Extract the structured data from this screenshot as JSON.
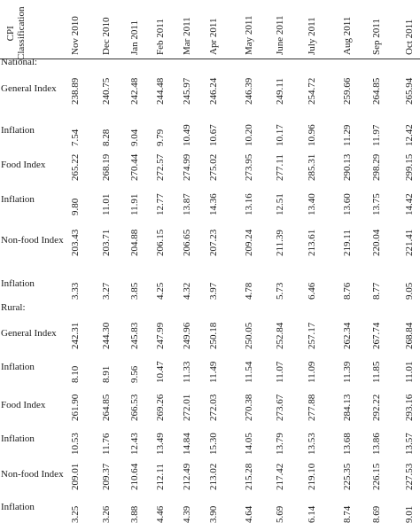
{
  "table": {
    "corner_label_line1": "CPI",
    "corner_label_line2": "Classification",
    "columns": [
      "Nov 2010",
      "Dec 2010",
      "Jan 2011",
      "Feb 2011",
      "Mar 2011",
      "Apr 2011",
      "May 2011",
      "June 2011",
      "July 2011",
      "Aug 2011",
      "Sep 2011",
      "Oct 2011"
    ],
    "rows": [
      {
        "label": "National:",
        "section": true,
        "values": []
      },
      {
        "label": "General Index",
        "values": [
          "238.89",
          "240.75",
          "242.48",
          "244.48",
          "245.97",
          "246.24",
          "246.39",
          "249.11",
          "254.72",
          "259.66",
          "264.85",
          "265.94"
        ]
      },
      {
        "label": "Inflation",
        "values": [
          "7.54",
          "8.28",
          "9.04",
          "9.79",
          "10.49",
          "10.67",
          "10.20",
          "10.17",
          "10.96",
          "11.29",
          "11.97",
          "12.42"
        ]
      },
      {
        "label": "Food Index",
        "values": [
          "265.22",
          "268.19",
          "270.44",
          "272.57",
          "274.99",
          "275.02",
          "273.95",
          "277.11",
          "285.31",
          "290.13",
          "298.29",
          "299.15"
        ]
      },
      {
        "label": "Inflation",
        "values": [
          "9.80",
          "11.01",
          "11.91",
          "12.77",
          "13.87",
          "14.36",
          "13.16",
          "12.51",
          "13.40",
          "13.60",
          "13.75",
          "14.42"
        ]
      },
      {
        "label": "Non-food Index",
        "values": [
          "203.43",
          "203.71",
          "204.88",
          "206.15",
          "206.65",
          "207.23",
          "209.24",
          "211.39",
          "213.61",
          "219.11",
          "220.04",
          "221.41"
        ]
      },
      {
        "label": "Inflation",
        "values": [
          "3.33",
          "3.27",
          "3.85",
          "4.25",
          "4.32",
          "3.97",
          "4.78",
          "5.73",
          "6.46",
          "8.76",
          "8.77",
          "9.05"
        ]
      },
      {
        "label": "Rural:",
        "section": true,
        "values": []
      },
      {
        "label": "General Index",
        "values": [
          "242.31",
          "244.30",
          "245.83",
          "247.99",
          "249.96",
          "250.18",
          "250.05",
          "252.84",
          "257.17",
          "262.34",
          "267.74",
          "268.84"
        ]
      },
      {
        "label": "Inflation",
        "values": [
          "8.10",
          "8.91",
          "9.56",
          "10.47",
          "11.33",
          "11.49",
          "11.54",
          "11.07",
          "11.09",
          "11.39",
          "11.85",
          "11.01"
        ]
      },
      {
        "label": "Food Index",
        "values": [
          "261.90",
          "264.85",
          "266.53",
          "269.26",
          "272.01",
          "272.03",
          "270.38",
          "273.67",
          "277.88",
          "284.13",
          "292.22",
          "293.16"
        ]
      },
      {
        "label": "Inflation",
        "values": [
          "10.53",
          "11.76",
          "12.43",
          "13.49",
          "14.84",
          "15.30",
          "14.05",
          "13.79",
          "13.53",
          "13.68",
          "13.86",
          "13.57"
        ]
      },
      {
        "label": "Non-food Index",
        "values": [
          "209.01",
          "209.37",
          "210.64",
          "212.11",
          "212.49",
          "213.02",
          "215.28",
          "217.42",
          "219.10",
          "225.35",
          "226.15",
          "227.53"
        ]
      },
      {
        "label": "Inflation",
        "values": [
          "3.25",
          "3.26",
          "3.88",
          "4.46",
          "4.39",
          "3.90",
          "4.64",
          "5.69",
          "6.14",
          "8.74",
          "8.69",
          "9.01"
        ]
      }
    ]
  }
}
